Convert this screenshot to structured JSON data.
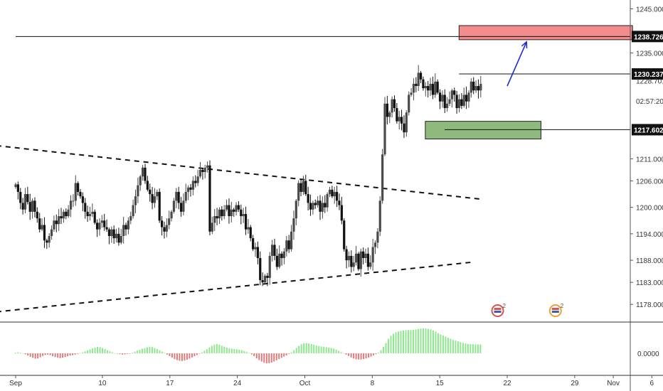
{
  "chart_data": {
    "type": "candlestick",
    "price_axis": {
      "range": [
        1174.0,
        1247.0
      ],
      "ticks": [
        "1245.000",
        "1235.000",
        "1211.000",
        "1206.000",
        "1200.000",
        "1194.000",
        "1188.000",
        "1183.000",
        "1178.000"
      ],
      "grid": false
    },
    "price_tags": [
      {
        "label": "1238.726",
        "value": 1238.726,
        "style": "dark"
      },
      {
        "label": "1230.237",
        "value": 1230.237,
        "style": "dark"
      },
      {
        "label": "1228.701",
        "value": 1228.701,
        "style": "plain"
      },
      {
        "label": "02:57:20",
        "value": 1224.1,
        "style": "plain"
      },
      {
        "label": "1217.602",
        "value": 1217.602,
        "style": "dark"
      }
    ],
    "time_axis": {
      "labels": [
        "Sep",
        "10",
        "17",
        "24",
        "Oct",
        "8",
        "15",
        "22",
        "29",
        "Nov",
        "6"
      ],
      "positions_days": [
        0,
        9,
        16,
        23,
        30,
        37,
        44,
        51,
        58,
        62,
        66
      ]
    },
    "horizontal_lines": [
      {
        "value": 1238.726,
        "from_day": 0,
        "to_day": 67
      },
      {
        "value": 1230.237,
        "from_day": 46,
        "to_day": 67
      },
      {
        "value": 1217.602,
        "from_day": 44.5,
        "to_day": 67
      }
    ],
    "zones": [
      {
        "name": "resistance-zone",
        "from_day": 46,
        "to_day": 64,
        "low": 1238.0,
        "high": 1241.2,
        "color": "#f28b8b"
      },
      {
        "name": "support-zone",
        "from_day": 42.5,
        "to_day": 54.5,
        "low": 1215.5,
        "high": 1219.5,
        "color": "#8fba7d"
      }
    ],
    "trendlines": [
      {
        "name": "upper-trendline",
        "from": [
          -2,
          1214.0
        ],
        "to": [
          48.5,
          1201.8
        ],
        "style": "dashed"
      },
      {
        "name": "lower-trendline",
        "from": [
          -2,
          1176.3
        ],
        "to": [
          47.5,
          1187.6
        ],
        "style": "dashed"
      }
    ],
    "arrow": {
      "from": [
        51,
        1227.5
      ],
      "to": [
        53,
        1237.5
      ],
      "color": "#1f2dd0"
    },
    "candles": {
      "colors": {
        "up": "#4a4a4a",
        "down": "#111111"
      },
      "close": [
        1205.2,
        1203.5,
        1201.0,
        1199.5,
        1203.0,
        1201.2,
        1199.0,
        1201.5,
        1199.0,
        1197.5,
        1195.0,
        1196.0,
        1192.5,
        1192.0,
        1193.5,
        1195.0,
        1197.0,
        1196.2,
        1198.0,
        1197.5,
        1199.0,
        1198.0,
        1199.5,
        1201.5,
        1201.5,
        1205.5,
        1203.5,
        1202.5,
        1201.0,
        1199.0,
        1198.0,
        1198.5,
        1199.0,
        1196.5,
        1195.0,
        1196.5,
        1197.0,
        1195.5,
        1195.0,
        1193.5,
        1195.0,
        1193.0,
        1194.0,
        1192.0,
        1193.5,
        1196.0,
        1195.0,
        1197.0,
        1198.0,
        1200.5,
        1202.5,
        1205.0,
        1207.0,
        1209.0,
        1206.0,
        1204.0,
        1203.0,
        1201.0,
        1202.5,
        1203.5,
        1197.0,
        1195.5,
        1194.5,
        1196.0,
        1197.5,
        1199.0,
        1201.5,
        1203.5,
        1201.0,
        1199.0,
        1201.5,
        1203.5,
        1204.5,
        1204.0,
        1206.0,
        1205.5,
        1207.0,
        1208.5,
        1208.0,
        1209.0,
        1209.5,
        1194.5,
        1196.5,
        1198.0,
        1197.5,
        1199.5,
        1198.0,
        1199.5,
        1200.5,
        1198.0,
        1199.5,
        1199.0,
        1200.5,
        1199.5,
        1198.0,
        1198.5,
        1195.0,
        1195.5,
        1193.0,
        1190.5,
        1191.0,
        1188.5,
        1183.5,
        1183.0,
        1184.5,
        1184.0,
        1189.0,
        1191.5,
        1189.0,
        1186.5,
        1189.5,
        1188.5,
        1190.0,
        1192.5,
        1190.5,
        1194.5,
        1197.5,
        1201.5,
        1205.5,
        1203.5,
        1206.0,
        1203.0,
        1201.0,
        1199.5,
        1201.0,
        1200.5,
        1201.5,
        1199.0,
        1201.0,
        1200.0,
        1203.0,
        1204.0,
        1202.5,
        1203.5,
        1201.5,
        1200.5,
        1197.0,
        1190.5,
        1188.0,
        1189.0,
        1186.5,
        1187.5,
        1189.5,
        1186.0,
        1190.0,
        1188.5,
        1189.5,
        1186.5,
        1187.5,
        1191.0,
        1192.0,
        1194.5,
        1201.5,
        1212.0,
        1223.5,
        1220.5,
        1221.5,
        1224.5,
        1222.5,
        1219.5,
        1220.5,
        1219.0,
        1217.0,
        1221.5,
        1225.5,
        1226.0,
        1228.0,
        1227.5,
        1230.5,
        1229.0,
        1227.0,
        1227.5,
        1226.5,
        1228.0,
        1225.5,
        1228.5,
        1226.0,
        1224.0,
        1225.5,
        1222.5,
        1223.5,
        1224.5,
        1226.5,
        1225.5,
        1222.5,
        1224.5,
        1223.0,
        1225.5,
        1224.0,
        1226.0,
        1228.5,
        1226.5,
        1227.5,
        1226.5,
        1228.0
      ]
    },
    "event_icons": [
      {
        "label": "2",
        "day": 50
      },
      {
        "label": "2",
        "day": 56
      }
    ],
    "oscillator": {
      "type": "histogram",
      "zero_label": "0.0000",
      "colors": {
        "positive": "#8ee88e",
        "negative": "#e07b7b"
      },
      "values": [
        0.4,
        0.5,
        0.3,
        0.1,
        -0.5,
        -1.1,
        -1.7,
        -2.2,
        -2.6,
        -2.5,
        -1.9,
        -1.3,
        -0.8,
        -0.6,
        -0.9,
        -1.4,
        -1.8,
        -2.1,
        -2.3,
        -2.1,
        -1.8,
        -1.4,
        -1.1,
        -0.9,
        -0.6,
        -0.3,
        0.1,
        0.5,
        1.0,
        1.4,
        1.9,
        2.4,
        2.8,
        3.1,
        3.0,
        2.6,
        2.1,
        1.5,
        1.0,
        0.5,
        0.1,
        -0.2,
        -0.4,
        -0.6,
        -0.5,
        -0.3,
        -0.1,
        0.3,
        0.8,
        1.3,
        1.7,
        2.2,
        2.5,
        2.9,
        3.2,
        3.0,
        2.6,
        2.1,
        1.5,
        0.8,
        0.2,
        -0.6,
        -1.4,
        -2.1,
        -2.8,
        -3.3,
        -3.6,
        -3.7,
        -3.5,
        -3.1,
        -2.6,
        -2.0,
        -1.4,
        -0.8,
        -0.2,
        0.5,
        1.2,
        2.0,
        2.8,
        3.6,
        4.2,
        4.5,
        4.2,
        3.7,
        3.2,
        2.8,
        2.5,
        2.3,
        2.1,
        2.0,
        1.8,
        1.5,
        1.1,
        0.7,
        0.2,
        -0.5,
        -1.4,
        -2.4,
        -3.3,
        -4.0,
        -4.6,
        -4.9,
        -4.8,
        -4.5,
        -4.0,
        -3.4,
        -2.8,
        -2.2,
        -1.6,
        -1.0,
        -0.3,
        0.5,
        1.5,
        2.6,
        3.6,
        4.4,
        4.9,
        5.0,
        4.8,
        4.5,
        4.2,
        3.8,
        3.5,
        3.3,
        3.2,
        3.0,
        2.8,
        2.6,
        2.3,
        1.8,
        1.2,
        0.6,
        0.0,
        -0.6,
        -1.3,
        -2.0,
        -2.5,
        -2.9,
        -3.0,
        -3.0,
        -2.8,
        -2.5,
        -2.1,
        -1.6,
        -1.0,
        -0.4,
        0.4,
        1.5,
        3.1,
        5.0,
        7.0,
        8.5,
        9.5,
        10.2,
        10.6,
        10.9,
        11.1,
        11.2,
        11.3,
        11.3,
        11.4,
        11.6,
        11.8,
        12.0,
        12.1,
        12.1,
        11.9,
        11.6,
        11.1,
        10.5,
        9.8,
        9.2,
        8.6,
        8.1,
        7.6,
        7.1,
        6.6,
        6.2,
        5.8,
        5.4,
        5.1,
        4.8,
        4.6,
        4.5,
        4.4,
        4.3,
        4.3,
        4.3
      ]
    }
  }
}
